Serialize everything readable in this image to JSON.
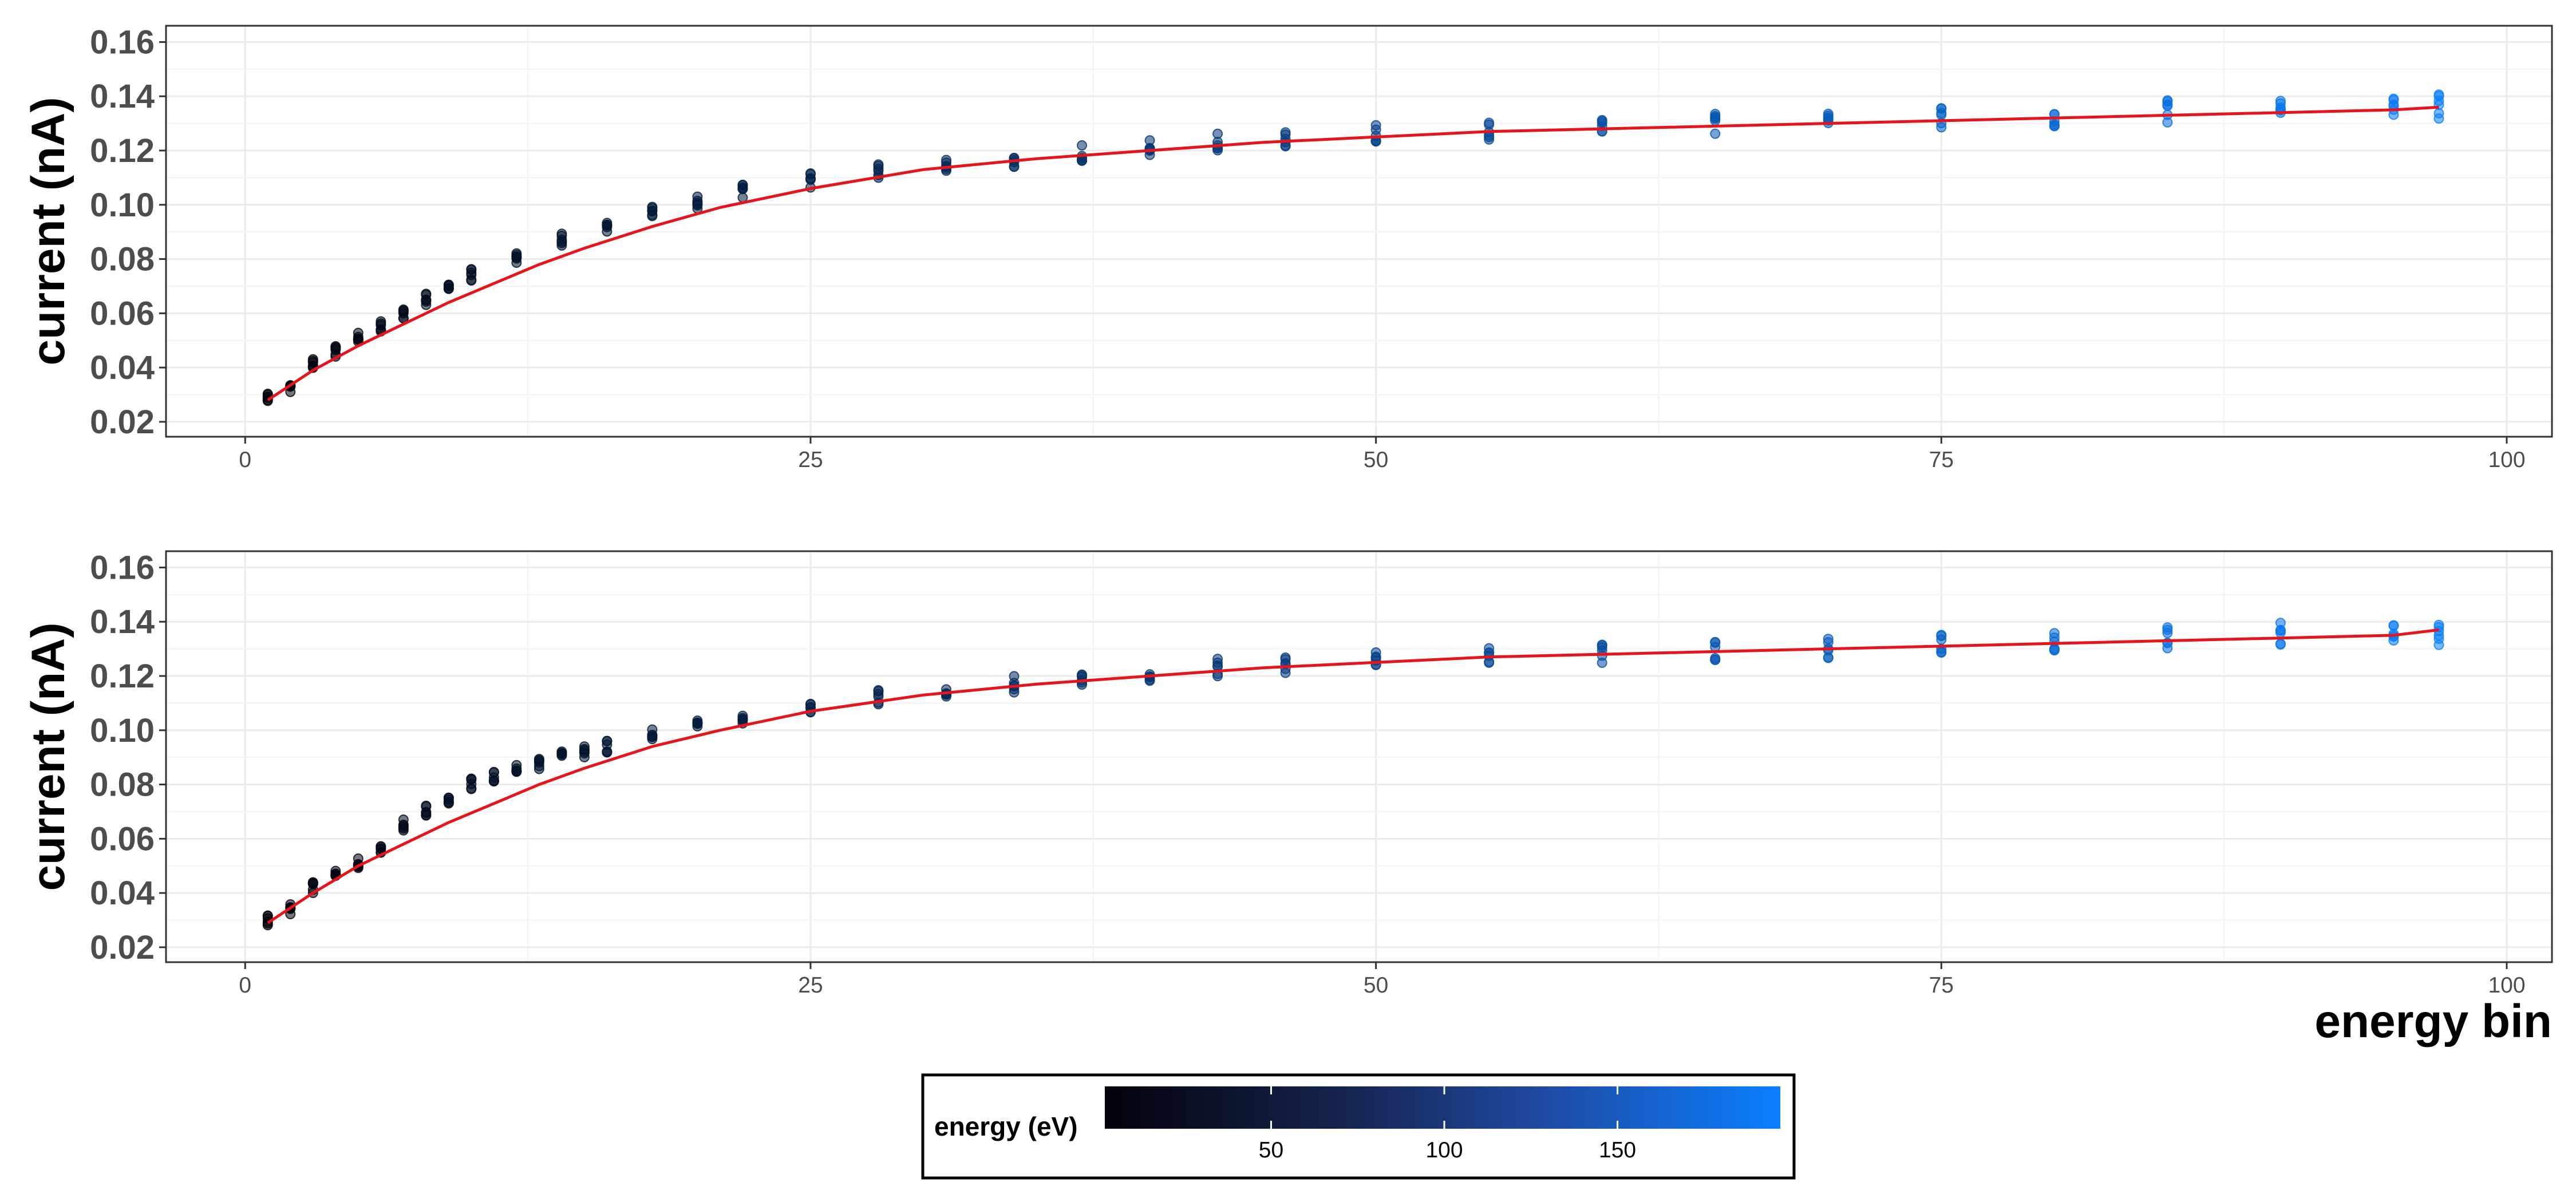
{
  "chart_data": [
    {
      "type": "scatter",
      "title": "",
      "xlabel": "",
      "ylabel": "current (nA)",
      "xlim": [
        -3.5,
        102
      ],
      "ylim": [
        0.0145,
        0.166
      ],
      "x_ticks": [
        0,
        25,
        50,
        75,
        100
      ],
      "y_ticks": [
        0.02,
        0.04,
        0.06,
        0.08,
        0.1,
        0.12,
        0.14,
        0.16
      ],
      "y_tick_labels": [
        "0.02",
        "0.04",
        "0.06",
        "0.08",
        "0.10",
        "0.12",
        "0.14",
        "0.16"
      ],
      "grid": true,
      "series": [
        {
          "kind": "points",
          "color_by": "energy (eV)",
          "x": [
            1,
            2,
            3,
            4,
            5,
            6,
            7,
            8,
            9,
            10,
            12,
            14,
            16,
            18,
            20,
            22,
            25,
            28,
            31,
            34,
            37,
            40,
            43,
            46,
            50,
            55,
            60,
            65,
            70,
            75,
            80,
            85,
            90,
            95,
            97
          ],
          "y": [
            0.029,
            0.033,
            0.041,
            0.046,
            0.051,
            0.055,
            0.06,
            0.065,
            0.07,
            0.074,
            0.081,
            0.087,
            0.092,
            0.097,
            0.101,
            0.105,
            0.109,
            0.112,
            0.115,
            0.117,
            0.119,
            0.121,
            0.123,
            0.124,
            0.126,
            0.127,
            0.129,
            0.13,
            0.131,
            0.132,
            0.133,
            0.134,
            0.135,
            0.136,
            0.136
          ]
        },
        {
          "kind": "fit_line",
          "color": "#e8141c",
          "x": [
            1,
            3,
            5,
            7,
            9,
            11,
            13,
            15,
            18,
            21,
            25,
            30,
            35,
            40,
            45,
            50,
            55,
            60,
            65,
            70,
            75,
            80,
            85,
            90,
            95,
            97
          ],
          "y": [
            0.028,
            0.039,
            0.048,
            0.056,
            0.064,
            0.071,
            0.078,
            0.084,
            0.092,
            0.099,
            0.106,
            0.113,
            0.117,
            0.12,
            0.123,
            0.125,
            0.127,
            0.128,
            0.129,
            0.13,
            0.131,
            0.132,
            0.133,
            0.134,
            0.135,
            0.136
          ]
        }
      ]
    },
    {
      "type": "scatter",
      "title": "",
      "xlabel": "energy bin",
      "ylabel": "current (nA)",
      "xlim": [
        -3.5,
        102
      ],
      "ylim": [
        0.0145,
        0.166
      ],
      "x_ticks": [
        0,
        25,
        50,
        75,
        100
      ],
      "y_ticks": [
        0.02,
        0.04,
        0.06,
        0.08,
        0.1,
        0.12,
        0.14,
        0.16
      ],
      "y_tick_labels": [
        "0.02",
        "0.04",
        "0.06",
        "0.08",
        "0.10",
        "0.12",
        "0.14",
        "0.16"
      ],
      "grid": true,
      "series": [
        {
          "kind": "points",
          "color_by": "energy (eV)",
          "x": [
            1,
            2,
            3,
            4,
            5,
            6,
            7,
            8,
            9,
            10,
            11,
            12,
            13,
            14,
            15,
            16,
            18,
            20,
            22,
            25,
            28,
            31,
            34,
            37,
            40,
            43,
            46,
            50,
            55,
            60,
            65,
            70,
            75,
            80,
            85,
            90,
            95,
            97
          ],
          "y": [
            0.03,
            0.034,
            0.042,
            0.046,
            0.051,
            0.057,
            0.065,
            0.07,
            0.075,
            0.08,
            0.083,
            0.086,
            0.088,
            0.09,
            0.092,
            0.094,
            0.098,
            0.101,
            0.104,
            0.108,
            0.112,
            0.115,
            0.117,
            0.119,
            0.121,
            0.123,
            0.124,
            0.126,
            0.127,
            0.128,
            0.129,
            0.13,
            0.131,
            0.133,
            0.134,
            0.135,
            0.136,
            0.136
          ]
        },
        {
          "kind": "fit_line",
          "color": "#e8141c",
          "x": [
            1,
            3,
            5,
            7,
            9,
            11,
            13,
            15,
            18,
            21,
            25,
            30,
            35,
            40,
            45,
            50,
            55,
            60,
            65,
            70,
            75,
            80,
            85,
            90,
            95,
            97
          ],
          "y": [
            0.029,
            0.04,
            0.05,
            0.058,
            0.066,
            0.073,
            0.08,
            0.086,
            0.094,
            0.1,
            0.107,
            0.113,
            0.117,
            0.12,
            0.123,
            0.125,
            0.127,
            0.128,
            0.129,
            0.13,
            0.131,
            0.132,
            0.133,
            0.134,
            0.135,
            0.137
          ]
        }
      ]
    }
  ],
  "legend": {
    "title": "energy (eV)",
    "position": "bottom",
    "range": [
      2,
      197
    ],
    "ticks": [
      50,
      100,
      150
    ],
    "tick_labels": [
      "50",
      "100",
      "150"
    ],
    "color_low": "#02020a",
    "color_high": "#0a7fff"
  },
  "colors": {
    "fit_line": "#e8141c",
    "point_low": "#02020a",
    "point_high": "#0a7fff"
  }
}
